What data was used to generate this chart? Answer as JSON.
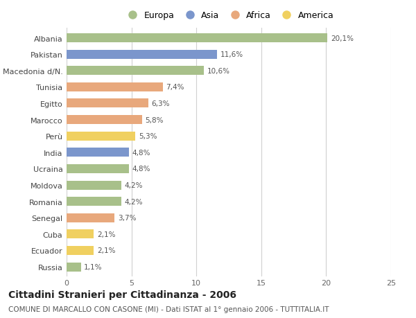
{
  "title": "Cittadini Stranieri per Cittadinanza - 2006",
  "subtitle": "COMUNE DI MARCALLO CON CASONE (MI) - Dati ISTAT al 1° gennaio 2006 - TUTTITALIA.IT",
  "categories": [
    "Albania",
    "Pakistan",
    "Macedonia d/N.",
    "Tunisia",
    "Egitto",
    "Marocco",
    "Perù",
    "India",
    "Ucraina",
    "Moldova",
    "Romania",
    "Senegal",
    "Cuba",
    "Ecuador",
    "Russia"
  ],
  "values": [
    20.1,
    11.6,
    10.6,
    7.4,
    6.3,
    5.8,
    5.3,
    4.8,
    4.8,
    4.2,
    4.2,
    3.7,
    2.1,
    2.1,
    1.1
  ],
  "labels": [
    "20,1%",
    "11,6%",
    "10,6%",
    "7,4%",
    "6,3%",
    "5,8%",
    "5,3%",
    "4,8%",
    "4,8%",
    "4,2%",
    "4,2%",
    "3,7%",
    "2,1%",
    "2,1%",
    "1,1%"
  ],
  "continents": [
    "Europa",
    "Asia",
    "Europa",
    "Africa",
    "Africa",
    "Africa",
    "America",
    "Asia",
    "Europa",
    "Europa",
    "Europa",
    "Africa",
    "America",
    "America",
    "Europa"
  ],
  "colors": {
    "Europa": "#a8c08a",
    "Asia": "#7b96cc",
    "Africa": "#e8a87c",
    "America": "#f0d060"
  },
  "legend_order": [
    "Europa",
    "Asia",
    "Africa",
    "America"
  ],
  "xlim": [
    0,
    25
  ],
  "xticks": [
    0,
    5,
    10,
    15,
    20,
    25
  ],
  "background_color": "#ffffff",
  "grid_color": "#d0d0d0",
  "bar_height": 0.55,
  "title_fontsize": 10,
  "subtitle_fontsize": 7.5,
  "label_fontsize": 7.5,
  "tick_fontsize": 8,
  "legend_fontsize": 9
}
